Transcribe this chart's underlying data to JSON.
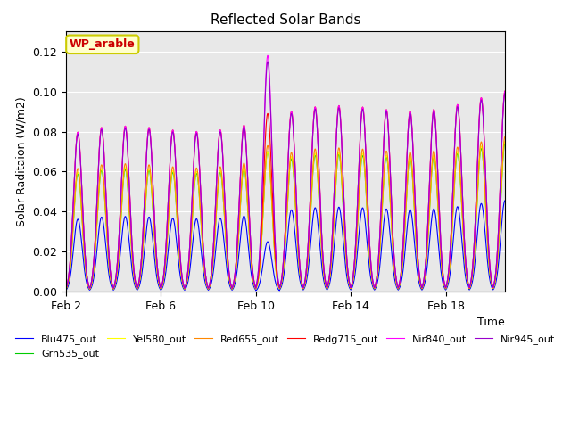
{
  "title": "Reflected Solar Bands",
  "ylabel": "Solar Raditaion (W/m2)",
  "xlabel": "Time",
  "annotation_text": "WP_arable",
  "annotation_facecolor": "#ffffcc",
  "annotation_edgecolor": "#cccc00",
  "annotation_textcolor": "#cc0000",
  "ylim": [
    0,
    0.13
  ],
  "xlim_days": [
    1.0,
    19.5
  ],
  "bg_color": "#e8e8e8",
  "legend_entries": [
    {
      "label": "Blu475_out",
      "color": "#0000ff"
    },
    {
      "label": "Grn535_out",
      "color": "#00cc00"
    },
    {
      "label": "Yel580_out",
      "color": "#ffff00"
    },
    {
      "label": "Red655_out",
      "color": "#ff8800"
    },
    {
      "label": "Redg715_out",
      "color": "#ff0000"
    },
    {
      "label": "Nir840_out",
      "color": "#ff00ff"
    },
    {
      "label": "Nir945_out",
      "color": "#9900cc"
    }
  ]
}
